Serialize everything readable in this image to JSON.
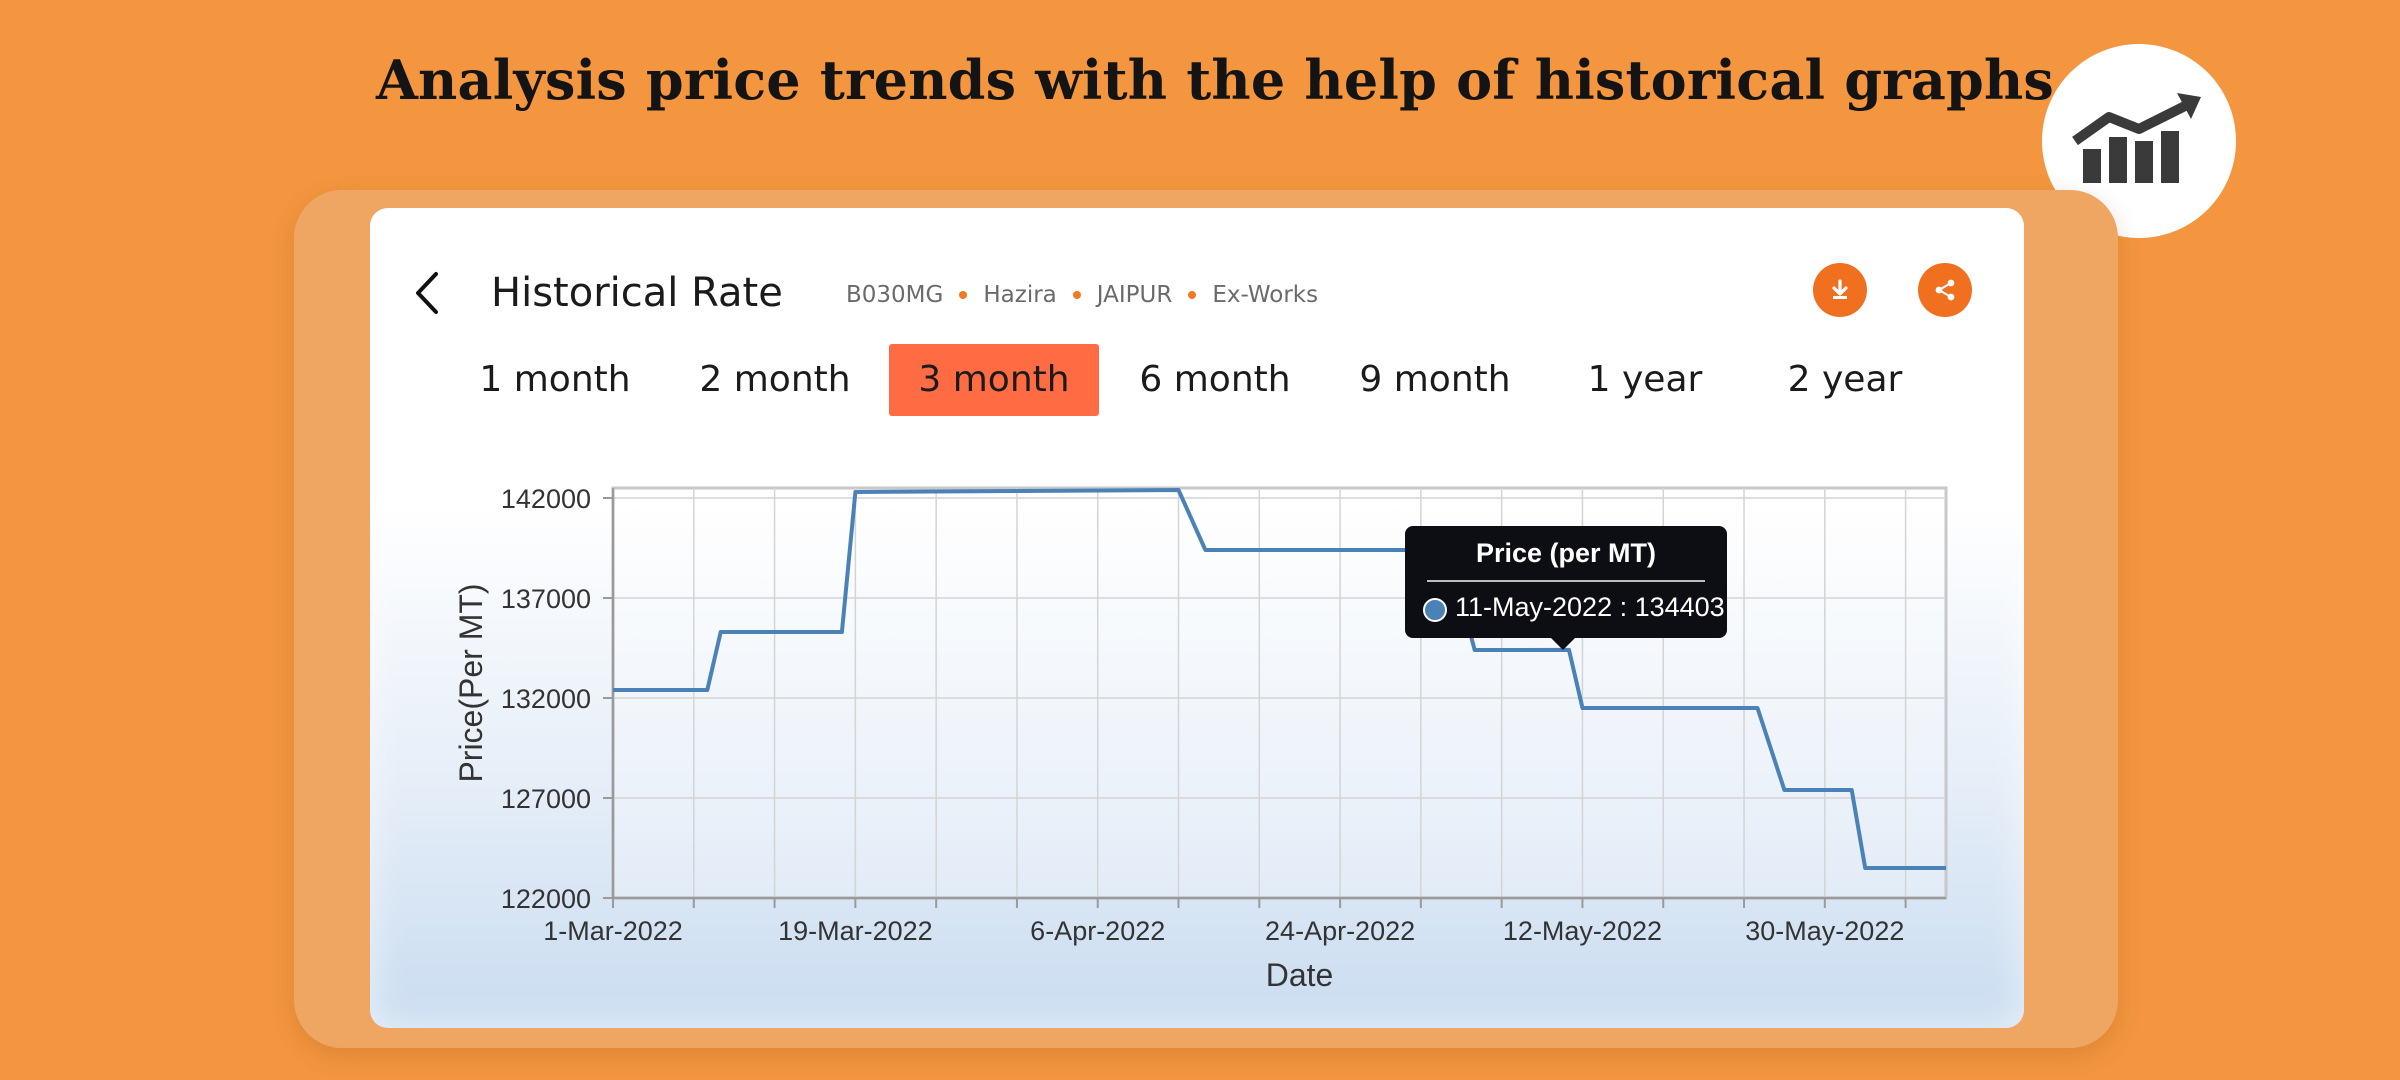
{
  "headline": "Analysis price trends with the help of historical graphs",
  "icons": {
    "badge": "trending-chart-icon",
    "back": "chevron-left-icon",
    "download": "download-icon",
    "share": "share-icon"
  },
  "header": {
    "title": "Historical Rate",
    "crumbs": [
      "B030MG",
      "Hazira",
      "JAIPUR",
      "Ex-Works"
    ]
  },
  "tabs": [
    {
      "label": "1 month",
      "active": false
    },
    {
      "label": "2 month",
      "active": false
    },
    {
      "label": "3 month",
      "active": true
    },
    {
      "label": "6 month",
      "active": false
    },
    {
      "label": "9 month",
      "active": false
    },
    {
      "label": "1 year",
      "active": false
    },
    {
      "label": "2 year",
      "active": false
    }
  ],
  "colors": {
    "background": "#f3963f",
    "accent": "#f07020",
    "active_tab": "#ff6c44",
    "line": "#4a82b8",
    "tooltip": "#0d0d14"
  },
  "tooltip": {
    "title": "Price (per MT)",
    "text": "11-May-2022 : 134403"
  },
  "chart_data": {
    "type": "line",
    "xlabel": "Date",
    "ylabel": "Price(Per MT)",
    "ylim": [
      122000,
      142500
    ],
    "xlim": [
      "2022-03-01",
      "2022-06-08"
    ],
    "y_ticks": [
      122000,
      127000,
      132000,
      137000,
      142000
    ],
    "x_ticks": [
      "1-Mar-2022",
      "19-Mar-2022",
      "6-Apr-2022",
      "24-Apr-2022",
      "12-May-2022",
      "30-May-2022"
    ],
    "x_tick_dates": [
      "2022-03-01",
      "2022-03-19",
      "2022-04-06",
      "2022-04-24",
      "2022-05-12",
      "2022-05-30"
    ],
    "grid": true,
    "series": [
      {
        "points": [
          [
            "2022-03-01",
            132400
          ],
          [
            "2022-03-08",
            132400
          ],
          [
            "2022-03-09",
            135300
          ],
          [
            "2022-03-18",
            135300
          ],
          [
            "2022-03-19",
            142300
          ],
          [
            "2022-04-12",
            142400
          ],
          [
            "2022-04-14",
            139400
          ],
          [
            "2022-05-02",
            139400
          ],
          [
            "2022-05-04",
            134400
          ],
          [
            "2022-05-11",
            134403
          ],
          [
            "2022-05-12",
            131500
          ],
          [
            "2022-05-25",
            131500
          ],
          [
            "2022-05-27",
            127400
          ],
          [
            "2022-06-01",
            127400
          ],
          [
            "2022-06-02",
            123500
          ],
          [
            "2022-06-08",
            123500
          ]
        ]
      }
    ]
  }
}
